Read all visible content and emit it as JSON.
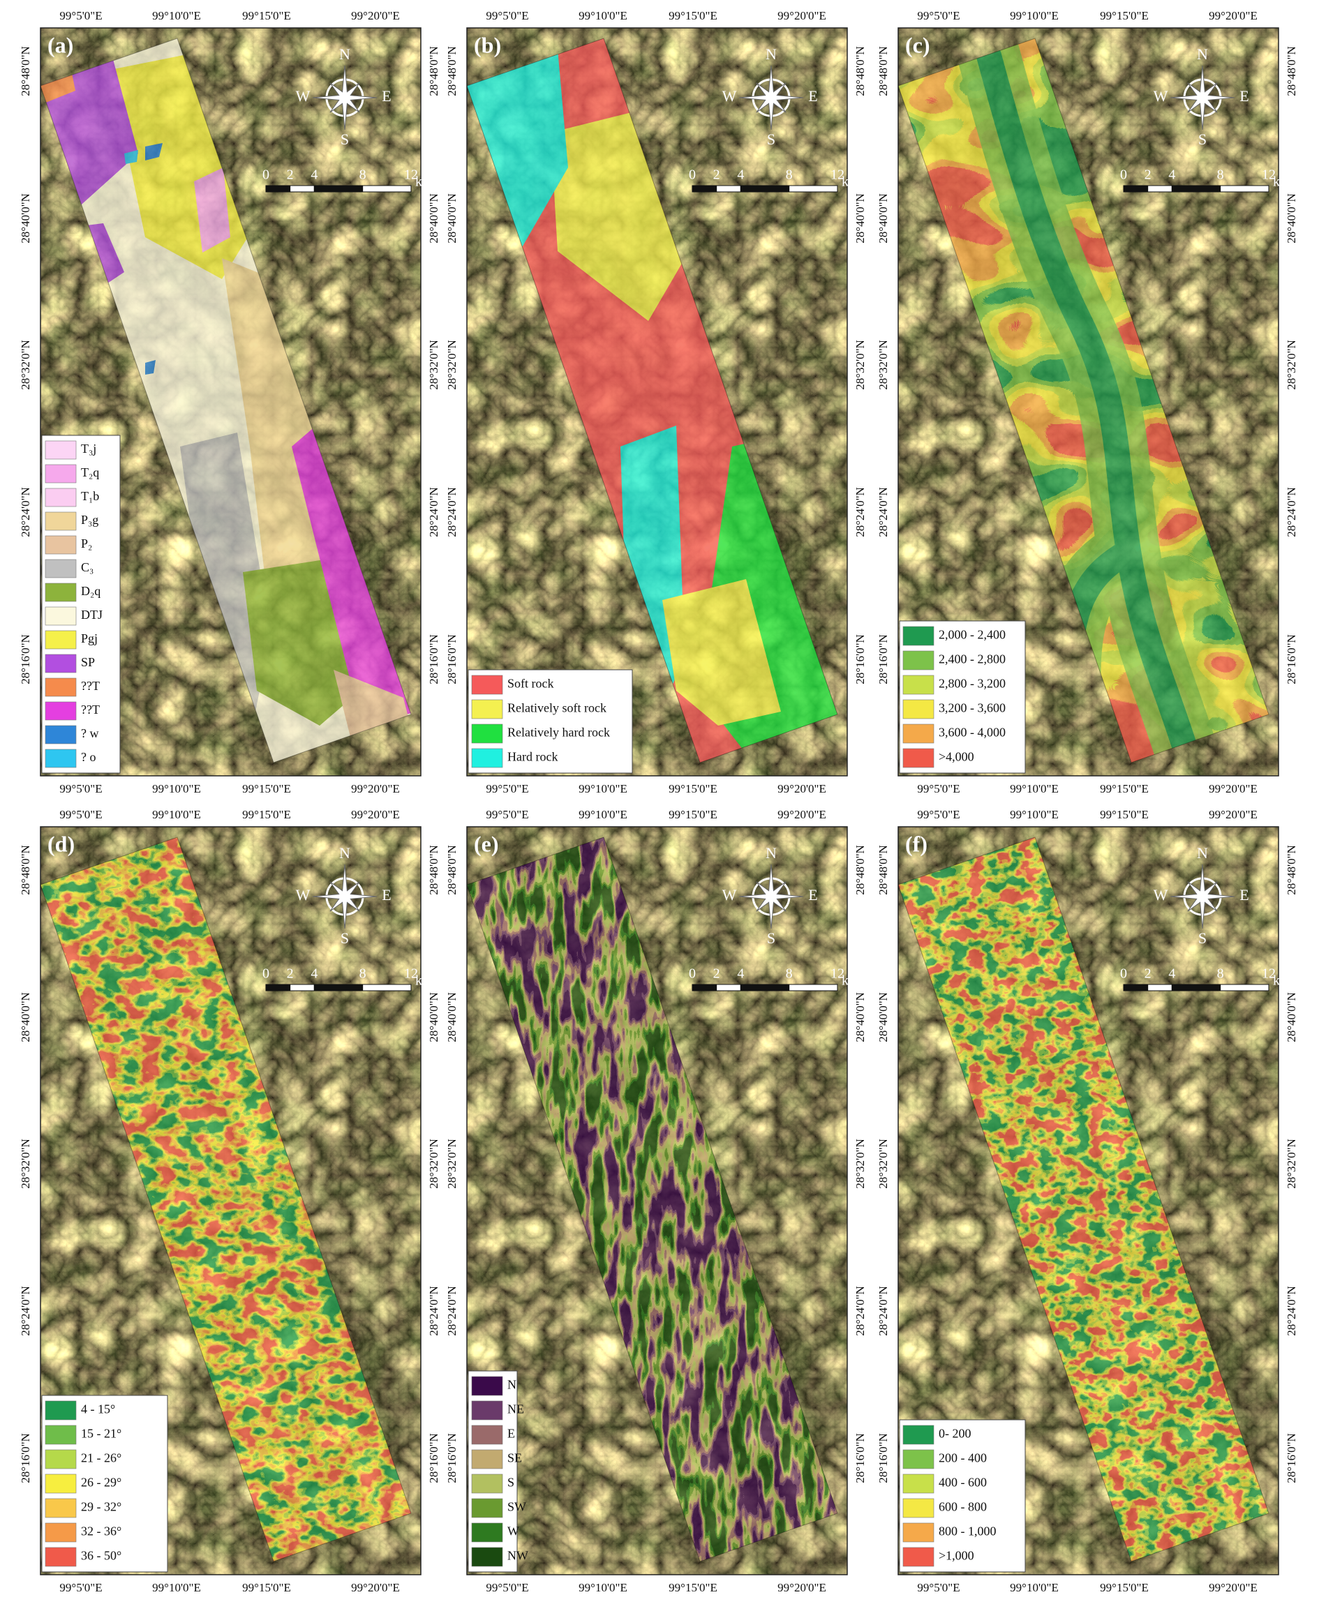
{
  "lon_labels": [
    "99°5'0\"E",
    "99°10'0\"E",
    "99°15'0\"E",
    "99°20'0\"E"
  ],
  "lat_labels": [
    "28°48'0\"N",
    "28°40'0\"N",
    "28°32'0\"N",
    "28°24'0\"N",
    "28°16'0\"N"
  ],
  "compass": {
    "north": "N",
    "east": "E",
    "south": "S",
    "west": "W"
  },
  "scale_bar": {
    "ticks": [
      0,
      2,
      4,
      8,
      12
    ],
    "unit": "km"
  },
  "panels": [
    {
      "label": "(a)",
      "legend": [
        {
          "label": "T₃j",
          "color": "#fcd5f5"
        },
        {
          "label": "T₂q",
          "color": "#f6a9ec"
        },
        {
          "label": "T₁b",
          "color": "#fbcdf1"
        },
        {
          "label": "P₃g",
          "color": "#f0d69a"
        },
        {
          "label": "P₂",
          "color": "#e8c4a0"
        },
        {
          "label": "C₃",
          "color": "#c0c0c0"
        },
        {
          "label": "D₂q",
          "color": "#8db33c"
        },
        {
          "label": "DTJ",
          "color": "#fbf8de"
        },
        {
          "label": "Pgj",
          "color": "#f5f04a"
        },
        {
          "label": "SP",
          "color": "#b24fe0"
        },
        {
          "label": "??T",
          "color": "#f58b4c"
        },
        {
          "label": "??T",
          "color": "#e43fe0"
        },
        {
          "label": "? w",
          "color": "#2e86d8"
        },
        {
          "label": "? o",
          "color": "#2ec6f0"
        }
      ]
    },
    {
      "label": "(b)",
      "legend": [
        {
          "label": "Soft rock",
          "color": "#f55a5a"
        },
        {
          "label": "Relatively soft rock",
          "color": "#f4f050"
        },
        {
          "label": "Relatively hard rock",
          "color": "#20e040"
        },
        {
          "label": "Hard rock",
          "color": "#20f0e0"
        }
      ]
    },
    {
      "label": "(c)",
      "legend": [
        {
          "label": "2,000 - 2,400",
          "color": "#1f9a50"
        },
        {
          "label": "2,400 - 2,800",
          "color": "#7dc24a"
        },
        {
          "label": "2,800 - 3,200",
          "color": "#c8e04a"
        },
        {
          "label": "3,200 - 3,600",
          "color": "#f4e844"
        },
        {
          "label": "3,600 - 4,000",
          "color": "#f4a94a"
        },
        {
          "label": ">4,000",
          "color": "#f05a4a"
        }
      ]
    },
    {
      "label": "(d)",
      "legend": [
        {
          "label": "4 - 15°",
          "color": "#1f9a50"
        },
        {
          "label": "15 - 21°",
          "color": "#6fbd4a"
        },
        {
          "label": "21 - 26°",
          "color": "#b5d94a"
        },
        {
          "label": "26 - 29°",
          "color": "#f7ee3f"
        },
        {
          "label": "29 - 32°",
          "color": "#f9c84a"
        },
        {
          "label": "32 - 36°",
          "color": "#f59a48"
        },
        {
          "label": "36 - 50°",
          "color": "#f05a4a"
        }
      ]
    },
    {
      "label": "(e)",
      "legend": [
        {
          "label": "N",
          "color": "#3a0a4a"
        },
        {
          "label": "NE",
          "color": "#6a3a6a"
        },
        {
          "label": "E",
          "color": "#9a6a6a"
        },
        {
          "label": "SE",
          "color": "#c2aa70"
        },
        {
          "label": "S",
          "color": "#b2c060"
        },
        {
          "label": "SW",
          "color": "#6a9a30"
        },
        {
          "label": "W",
          "color": "#2e7a20"
        },
        {
          "label": "NW",
          "color": "#1a4a10"
        }
      ]
    },
    {
      "label": "(f)",
      "legend": [
        {
          "label": "0- 200",
          "color": "#1f9a50"
        },
        {
          "label": "200 - 400",
          "color": "#7dc24a"
        },
        {
          "label": "400 - 600",
          "color": "#c8e04a"
        },
        {
          "label": "600 - 800",
          "color": "#f4e844"
        },
        {
          "label": "800 - 1,000",
          "color": "#f5a94a"
        },
        {
          "label": ">1,000",
          "color": "#f05a4a"
        }
      ]
    }
  ]
}
